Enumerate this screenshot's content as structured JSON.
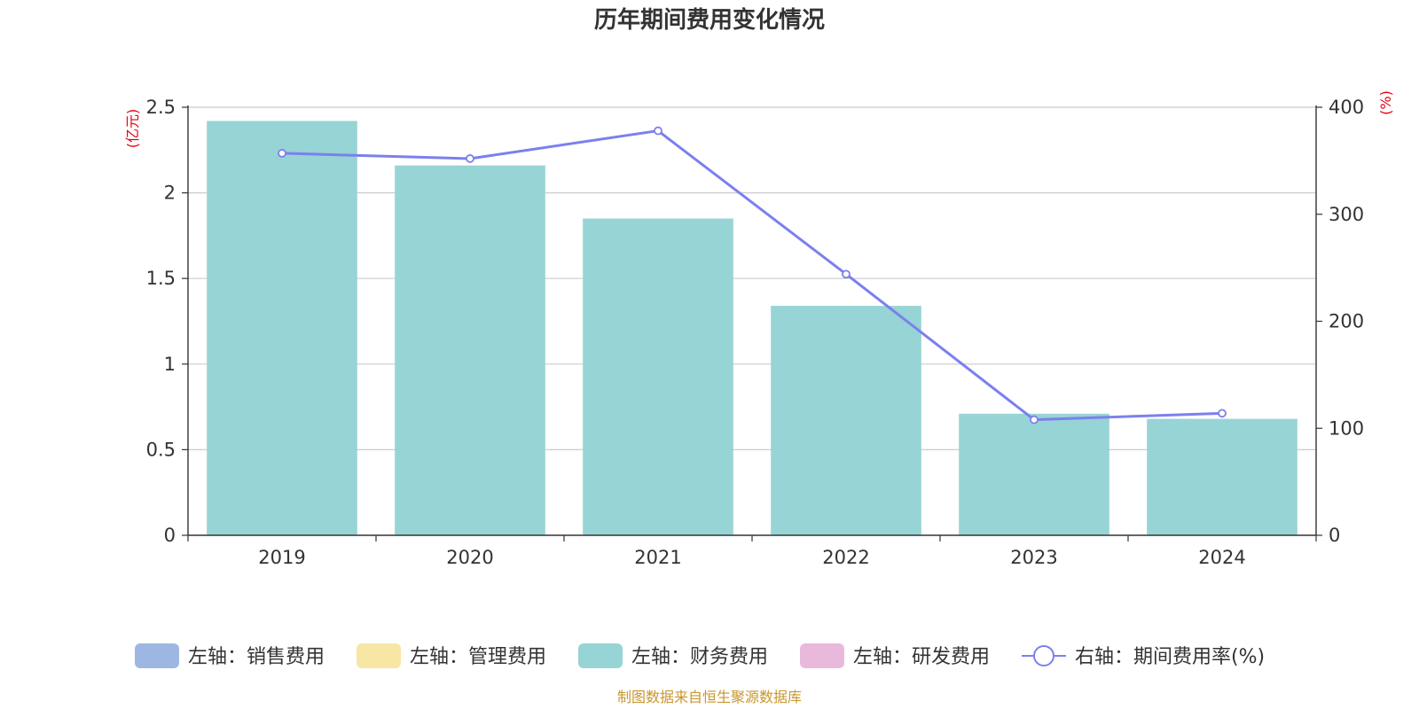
{
  "chart_data": {
    "type": "bar",
    "title": "历年期间费用变化情况",
    "categories": [
      "2019",
      "2020",
      "2021",
      "2022",
      "2023",
      "2024"
    ],
    "left_axis": {
      "unit": "(亿元)",
      "min": 0,
      "max": 2.5,
      "ticks": [
        "0",
        "0.5",
        "1",
        "1.5",
        "2",
        "2.5"
      ],
      "tick_values": [
        0,
        0.5,
        1,
        1.5,
        2,
        2.5
      ]
    },
    "right_axis": {
      "unit": "(%)",
      "min": 0,
      "max": 400,
      "ticks": [
        "0",
        "100",
        "200",
        "300",
        "400"
      ],
      "tick_values": [
        0,
        100,
        200,
        300,
        400
      ]
    },
    "series": [
      {
        "name": "左轴：销售费用",
        "kind": "bar",
        "axis": "left",
        "color": "#9DB7E2",
        "values": [
          0,
          0,
          0,
          0,
          0,
          0
        ]
      },
      {
        "name": "左轴：管理费用",
        "kind": "bar",
        "axis": "left",
        "color": "#F8E6A4",
        "values": [
          0,
          0,
          0,
          0,
          0,
          0
        ]
      },
      {
        "name": "左轴：财务费用",
        "kind": "bar",
        "axis": "left",
        "color": "#97D4D5",
        "values": [
          2.42,
          2.16,
          1.85,
          1.34,
          0.71,
          0.68
        ]
      },
      {
        "name": "左轴：研发费用",
        "kind": "bar",
        "axis": "left",
        "color": "#E8B9DA",
        "values": [
          0,
          0,
          0,
          0,
          0,
          0
        ]
      },
      {
        "name": "右轴：期间费用率(%)",
        "kind": "line",
        "axis": "right",
        "color": "#7B80EE",
        "values": [
          357,
          352,
          378,
          244,
          108,
          114
        ]
      }
    ],
    "grid": true,
    "legend_position": "bottom",
    "unit_color": "#E60012",
    "source": "制图数据来自恒生聚源数据库",
    "source_color": "#C8962E"
  }
}
